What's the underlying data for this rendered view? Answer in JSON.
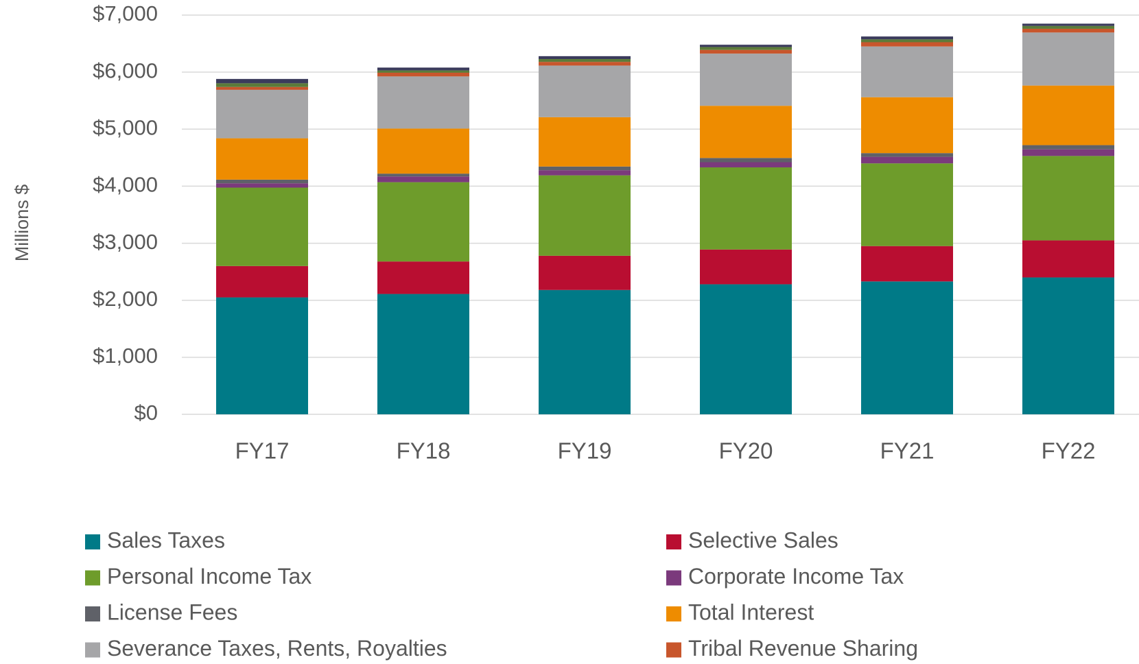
{
  "chart_data": {
    "type": "stacked_bar",
    "y_label": "Millions $",
    "categories": [
      "FY17",
      "FY18",
      "FY19",
      "FY20",
      "FY21",
      "FY22"
    ],
    "series": [
      {
        "name": "Sales Taxes",
        "color": "#007a87",
        "values": [
          2050,
          2110,
          2180,
          2280,
          2330,
          2400
        ]
      },
      {
        "name": "Selective Sales",
        "color": "#b90e31",
        "values": [
          550,
          570,
          600,
          610,
          620,
          650
        ]
      },
      {
        "name": "Personal Income Tax",
        "color": "#6e9c2b",
        "values": [
          1375,
          1390,
          1410,
          1440,
          1450,
          1480
        ]
      },
      {
        "name": "Corporate Income Tax",
        "color": "#7b3a7c",
        "values": [
          75,
          100,
          90,
          90,
          115,
          115
        ]
      },
      {
        "name": "License Fees",
        "color": "#5f6168",
        "values": [
          65,
          50,
          65,
          75,
          65,
          75
        ]
      },
      {
        "name": "Total Interest",
        "color": "#ee8c00",
        "values": [
          725,
          790,
          865,
          915,
          980,
          1045
        ]
      },
      {
        "name": "Severance Taxes, Rents, Royalties",
        "color": "#a6a6a8",
        "values": [
          850,
          915,
          905,
          915,
          890,
          930
        ]
      },
      {
        "name": "Tribal Revenue Sharing",
        "color": "#c8562c",
        "values": [
          50,
          65,
          65,
          65,
          75,
          65
        ]
      },
      {
        "color": "#5c7b3a",
        "values": [
          65,
          40,
          50,
          50,
          50,
          50
        ]
      },
      {
        "color": "#3b3b5c",
        "values": [
          75,
          50,
          50,
          40,
          50,
          40
        ]
      }
    ],
    "ylim": [
      0,
      7000
    ],
    "yticks": [
      {
        "value": 0,
        "label": "$0"
      },
      {
        "value": 1000,
        "label": "$1,000"
      },
      {
        "value": 2000,
        "label": "$2,000"
      },
      {
        "value": 3000,
        "label": "$3,000"
      },
      {
        "value": 4000,
        "label": "$4,000"
      },
      {
        "value": 5000,
        "label": "$5,000"
      },
      {
        "value": 6000,
        "label": "$6,000"
      },
      {
        "value": 7000,
        "label": "$7,000"
      }
    ],
    "grid": true
  }
}
